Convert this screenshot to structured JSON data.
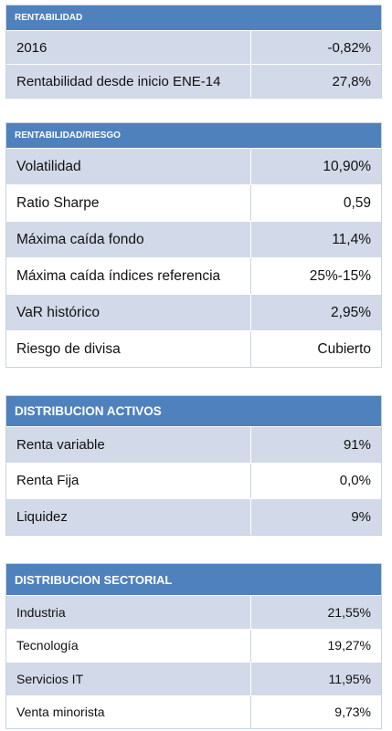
{
  "sections": [
    {
      "title": "RENTABILIDAD",
      "rows": [
        {
          "label": "2016",
          "value": "-0,82%"
        },
        {
          "label": "Rentabilidad desde inicio ENE-14",
          "value": "27,8%"
        }
      ]
    },
    {
      "title": "RENTABILIDAD/RIESGO",
      "rows": [
        {
          "label": "Volatilidad",
          "value": "10,90%"
        },
        {
          "label": "Ratio Sharpe",
          "value": "0,59"
        },
        {
          "label": "Máxima caída fondo",
          "value": "11,4%"
        },
        {
          "label": "Máxima caída  índices referencia",
          "value": "25%-15%"
        },
        {
          "label": "VaR histórico",
          "value": "2,95%"
        },
        {
          "label": "Riesgo de divisa",
          "value": "Cubierto"
        }
      ]
    },
    {
      "title": "DISTRIBUCION ACTIVOS",
      "rows": [
        {
          "label": "Renta variable",
          "value": "91%"
        },
        {
          "label": "Renta Fija",
          "value": "0,0%"
        },
        {
          "label": "Liquidez",
          "value": "9%"
        }
      ]
    },
    {
      "title": "DISTRIBUCION SECTORIAL",
      "rows": [
        {
          "label": "Industria",
          "value": "21,55%"
        },
        {
          "label": "Tecnología",
          "value": "19,27%"
        },
        {
          "label": "Servicios IT",
          "value": "11,95%"
        },
        {
          "label": "Venta minorista",
          "value": "9,73%"
        }
      ]
    }
  ]
}
